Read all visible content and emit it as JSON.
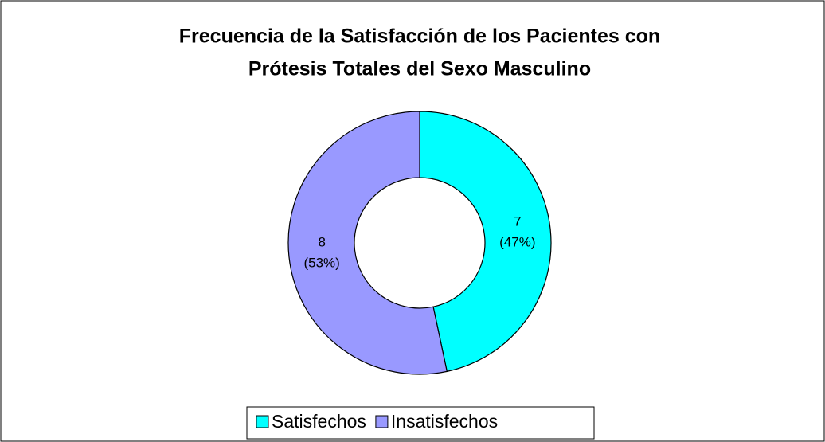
{
  "chart_data": {
    "type": "doughnut",
    "title": [
      "Frecuencia de la Satisfacción de los Pacientes con",
      "Prótesis Totales del Sexo Masculino"
    ],
    "categories": [
      "Satisfechos",
      "Insatisfechos"
    ],
    "values": [
      7,
      8
    ],
    "value_labels": [
      [
        "7",
        "(47%)"
      ],
      [
        "8",
        "(53%)"
      ]
    ],
    "colors": [
      "#00FFFF",
      "#9999FF"
    ],
    "legend": "bottom"
  }
}
